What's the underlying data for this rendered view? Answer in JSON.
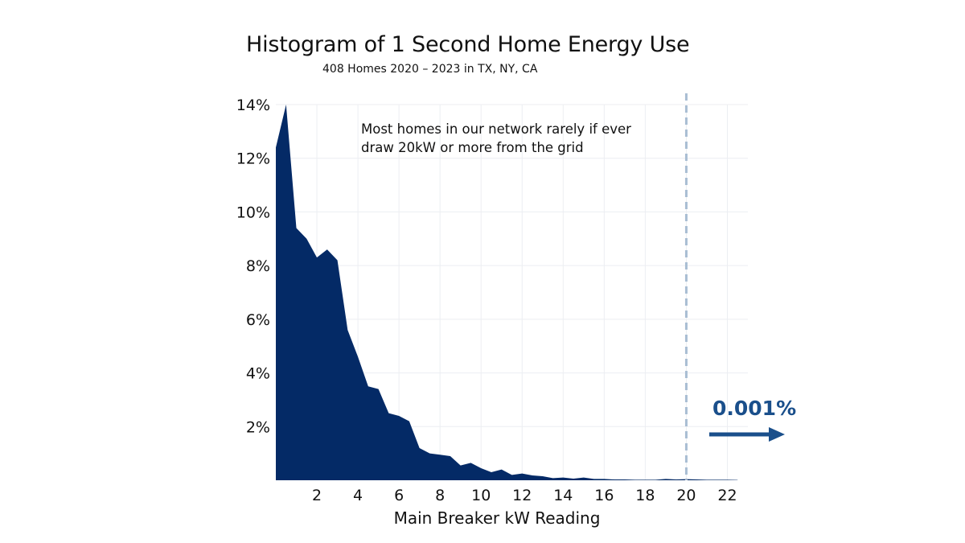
{
  "chart_data": {
    "type": "area",
    "title": "Histogram of 1 Second Home Energy Use",
    "subtitle": "408 Homes 2020 – 2023 in TX, NY, CA",
    "xlabel": "Main Breaker kW Reading",
    "ylabel": "",
    "xlim": [
      0,
      23
    ],
    "ylim": [
      0,
      14
    ],
    "x_ticks": [
      2,
      4,
      6,
      8,
      10,
      12,
      14,
      16,
      18,
      20,
      22
    ],
    "y_ticks": [
      2,
      4,
      6,
      8,
      10,
      12,
      14
    ],
    "y_tick_labels": [
      "2%",
      "4%",
      "6%",
      "8%",
      "10%",
      "12%",
      "14%"
    ],
    "grid": true,
    "series": [
      {
        "color": "#042a66",
        "x": [
          0,
          0.5,
          1,
          1.5,
          2,
          2.5,
          3,
          3.5,
          4,
          4.5,
          5,
          5.5,
          6,
          6.5,
          7,
          7.5,
          8,
          8.5,
          9,
          9.5,
          10,
          10.5,
          11,
          11.5,
          12,
          12.5,
          13,
          13.5,
          14,
          14.5,
          15,
          15.5,
          16,
          16.5,
          17,
          17.5,
          18,
          18.5,
          19,
          19.5,
          20,
          20.5,
          21,
          21.5,
          22,
          22.5
        ],
        "values": [
          12.4,
          14.0,
          9.4,
          9.0,
          8.3,
          8.6,
          8.2,
          5.6,
          4.6,
          3.5,
          3.4,
          2.5,
          2.4,
          2.2,
          1.2,
          1.0,
          0.95,
          0.9,
          0.55,
          0.65,
          0.45,
          0.3,
          0.4,
          0.2,
          0.25,
          0.18,
          0.15,
          0.08,
          0.1,
          0.06,
          0.1,
          0.05,
          0.05,
          0.03,
          0.03,
          0.02,
          0.02,
          0.02,
          0.05,
          0.03,
          0.04,
          0.03,
          0.02,
          0.02,
          0.02,
          0.01
        ]
      }
    ],
    "threshold": {
      "x": 20,
      "color": "#a9bed3"
    },
    "annotation": {
      "lines": [
        "Most homes in our network rarely if ever",
        "draw 20kW or more from the grid"
      ]
    },
    "callout": {
      "text": "0.001%",
      "color": "#1a4f8b"
    }
  }
}
